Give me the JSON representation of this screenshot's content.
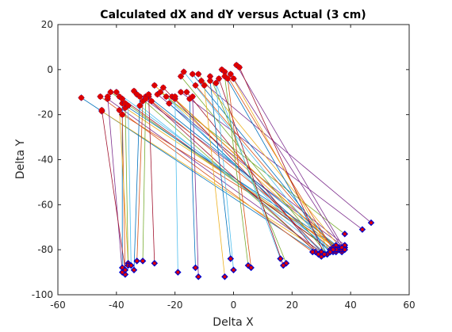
{
  "chart_data": {
    "type": "scatter",
    "title": "Calculated dX and dY versus Actual (3 cm)",
    "xlabel": "Delta X",
    "ylabel": "Delta Y",
    "xlim": [
      -60,
      60
    ],
    "ylim": [
      -100,
      20
    ],
    "xticks": [
      -60,
      -40,
      -20,
      0,
      20,
      40,
      60
    ],
    "yticks": [
      20,
      0,
      -20,
      -40,
      -60,
      -80,
      -100
    ],
    "grid": false,
    "legend": "none",
    "calculated_marker_color": "#dd0000",
    "actual_marker_color": "#0000cc",
    "pairs": [
      {
        "calc": [
          -52,
          -12.5
        ],
        "actual": [
          28,
          -81
        ],
        "color": "#0072bd"
      },
      {
        "calc": [
          -45.5,
          -12
        ],
        "actual": [
          27,
          -81
        ],
        "color": "#d95319"
      },
      {
        "calc": [
          -45,
          -18.5
        ],
        "actual": [
          30,
          -81
        ],
        "color": "#edb120"
      },
      {
        "calc": [
          -43,
          -13
        ],
        "actual": [
          31,
          -82
        ],
        "color": "#7e2f8e"
      },
      {
        "calc": [
          -42,
          -10
        ],
        "actual": [
          34,
          -81
        ],
        "color": "#77ac30"
      },
      {
        "calc": [
          -40,
          -10
        ],
        "actual": [
          35,
          -81
        ],
        "color": "#4dbeee"
      },
      {
        "calc": [
          -39,
          -12
        ],
        "actual": [
          33,
          -80
        ],
        "color": "#a2142f"
      },
      {
        "calc": [
          -38,
          -15
        ],
        "actual": [
          36,
          -79
        ],
        "color": "#0072bd"
      },
      {
        "calc": [
          -38,
          -20
        ],
        "actual": [
          37,
          -80
        ],
        "color": "#d95319"
      },
      {
        "calc": [
          -37,
          -17
        ],
        "actual": [
          36,
          -80
        ],
        "color": "#edb120"
      },
      {
        "calc": [
          -34,
          -9.5
        ],
        "actual": [
          38,
          -79
        ],
        "color": "#7e2f8e"
      },
      {
        "calc": [
          -33,
          -11
        ],
        "actual": [
          30,
          -83
        ],
        "color": "#77ac30"
      },
      {
        "calc": [
          -32,
          -16
        ],
        "actual": [
          32,
          -82
        ],
        "color": "#4dbeee"
      },
      {
        "calc": [
          -30,
          -12
        ],
        "actual": [
          29,
          -82
        ],
        "color": "#a2142f"
      },
      {
        "calc": [
          -29,
          -12
        ],
        "actual": [
          35,
          -78
        ],
        "color": "#0072bd"
      },
      {
        "calc": [
          -28,
          -14
        ],
        "actual": [
          34,
          -80
        ],
        "color": "#d95319"
      },
      {
        "calc": [
          -27,
          -7
        ],
        "actual": [
          35,
          -80
        ],
        "color": "#edb120"
      },
      {
        "calc": [
          -26,
          -11
        ],
        "actual": [
          38,
          -78
        ],
        "color": "#7e2f8e"
      },
      {
        "calc": [
          -25,
          -10
        ],
        "actual": [
          38,
          -73
        ],
        "color": "#77ac30"
      },
      {
        "calc": [
          -23,
          -12
        ],
        "actual": [
          30,
          -81
        ],
        "color": "#4dbeee"
      },
      {
        "calc": [
          -24,
          -8
        ],
        "actual": [
          31,
          -82
        ],
        "color": "#a2142f"
      },
      {
        "calc": [
          -22,
          -15
        ],
        "actual": [
          33,
          -81
        ],
        "color": "#0072bd"
      },
      {
        "calc": [
          -21,
          -12
        ],
        "actual": [
          36,
          -80
        ],
        "color": "#d95319"
      },
      {
        "calc": [
          -20,
          -13
        ],
        "actual": [
          37,
          -81
        ],
        "color": "#edb120"
      },
      {
        "calc": [
          -18,
          -10
        ],
        "actual": [
          44,
          -71
        ],
        "color": "#7e2f8e"
      },
      {
        "calc": [
          -18,
          -3
        ],
        "actual": [
          32,
          -82
        ],
        "color": "#77ac30"
      },
      {
        "calc": [
          -17,
          -1
        ],
        "actual": [
          33,
          -81
        ],
        "color": "#4dbeee"
      },
      {
        "calc": [
          -16,
          -10
        ],
        "actual": [
          29,
          -82
        ],
        "color": "#a2142f"
      },
      {
        "calc": [
          -14,
          -2
        ],
        "actual": [
          35,
          -80
        ],
        "color": "#0072bd"
      },
      {
        "calc": [
          -13,
          -7
        ],
        "actual": [
          34,
          -79
        ],
        "color": "#d95319"
      },
      {
        "calc": [
          -12,
          -2
        ],
        "actual": [
          37,
          -80
        ],
        "color": "#edb120"
      },
      {
        "calc": [
          -11,
          -5
        ],
        "actual": [
          47,
          -68
        ],
        "color": "#7e2f8e"
      },
      {
        "calc": [
          -8,
          -3
        ],
        "actual": [
          18,
          -86
        ],
        "color": "#77ac30"
      },
      {
        "calc": [
          -6,
          -6
        ],
        "actual": [
          16,
          -84
        ],
        "color": "#4dbeee"
      },
      {
        "calc": [
          -5,
          -4
        ],
        "actual": [
          17,
          -87
        ],
        "color": "#a2142f"
      },
      {
        "calc": [
          -4,
          0
        ],
        "actual": [
          32,
          -82
        ],
        "color": "#0072bd"
      },
      {
        "calc": [
          -3,
          -1
        ],
        "actual": [
          34,
          -80
        ],
        "color": "#d95319"
      },
      {
        "calc": [
          -1,
          -2
        ],
        "actual": [
          33,
          -81
        ],
        "color": "#edb120"
      },
      {
        "calc": [
          0,
          -4
        ],
        "actual": [
          37,
          -79
        ],
        "color": "#7e2f8e"
      },
      {
        "calc": [
          1,
          2
        ],
        "actual": [
          38,
          -80
        ],
        "color": "#7e2f8e"
      },
      {
        "calc": [
          2,
          1
        ],
        "actual": [
          31,
          -82
        ],
        "color": "#a2142f"
      },
      {
        "calc": [
          -38,
          -13
        ],
        "actual": [
          -38,
          -88
        ],
        "color": "#0072bd"
      },
      {
        "calc": [
          -38,
          -20
        ],
        "actual": [
          -37,
          -91
        ],
        "color": "#d95319"
      },
      {
        "calc": [
          -39,
          -18
        ],
        "actual": [
          -36,
          -86
        ],
        "color": "#edb120"
      },
      {
        "calc": [
          -43,
          -12
        ],
        "actual": [
          -38,
          -90
        ],
        "color": "#7e2f8e"
      },
      {
        "calc": [
          -37,
          -15
        ],
        "actual": [
          -36,
          -87
        ],
        "color": "#77ac30"
      },
      {
        "calc": [
          -36,
          -16
        ],
        "actual": [
          -35,
          -87
        ],
        "color": "#4dbeee"
      },
      {
        "calc": [
          -45,
          -18
        ],
        "actual": [
          -37,
          -89
        ],
        "color": "#a2142f"
      },
      {
        "calc": [
          -32,
          -12
        ],
        "actual": [
          -34,
          -89
        ],
        "color": "#0072bd"
      },
      {
        "calc": [
          -31,
          -14
        ],
        "actual": [
          -33,
          -85
        ],
        "color": "#d95319"
      },
      {
        "calc": [
          -30,
          -13
        ],
        "actual": [
          -31,
          -85
        ],
        "color": "#77ac30"
      },
      {
        "calc": [
          -29,
          -11
        ],
        "actual": [
          -27,
          -86
        ],
        "color": "#a2142f"
      },
      {
        "calc": [
          -20,
          -12
        ],
        "actual": [
          -19,
          -90
        ],
        "color": "#4dbeee"
      },
      {
        "calc": [
          -15,
          -13
        ],
        "actual": [
          -13,
          -88
        ],
        "color": "#0072bd"
      },
      {
        "calc": [
          -14,
          -12
        ],
        "actual": [
          -12,
          -92
        ],
        "color": "#7e2f8e"
      },
      {
        "calc": [
          -10,
          -7
        ],
        "actual": [
          -3,
          -92
        ],
        "color": "#edb120"
      },
      {
        "calc": [
          -8,
          -5
        ],
        "actual": [
          -1,
          -84
        ],
        "color": "#0072bd"
      },
      {
        "calc": [
          -6,
          -6
        ],
        "actual": [
          0,
          -89
        ],
        "color": "#4dbeee"
      },
      {
        "calc": [
          -3,
          -3
        ],
        "actual": [
          5,
          -87
        ],
        "color": "#77ac30"
      },
      {
        "calc": [
          -2,
          -4
        ],
        "actual": [
          6,
          -88
        ],
        "color": "#d95319"
      }
    ]
  }
}
